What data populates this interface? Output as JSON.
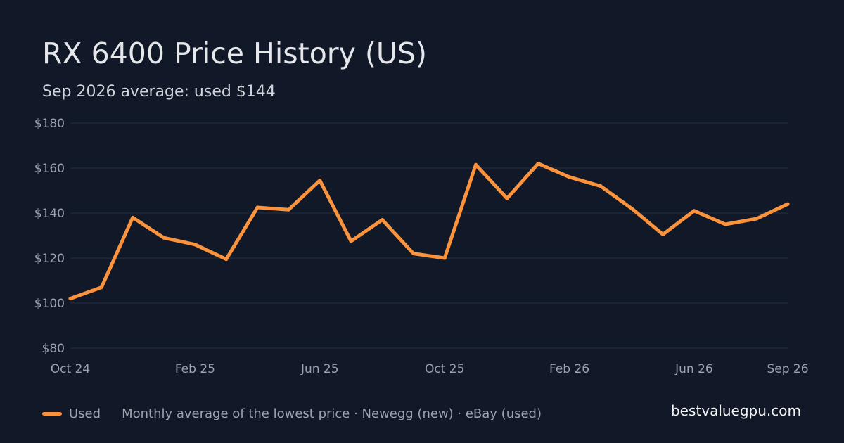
{
  "header": {
    "title": "RX 6400 Price History (US)",
    "subtitle": "Sep 2026 average: used $144"
  },
  "legend": {
    "series_label": "Used",
    "note": "Monthly average of the lowest price · Newegg (new) · eBay (used)"
  },
  "brand": "bestvaluegpu.com",
  "colors": {
    "background": "#111827",
    "grid": "#253041",
    "tick_text": "#9ca3af",
    "used_line": "#fb923c"
  },
  "chart_data": {
    "type": "line",
    "title": "RX 6400 Price History (US)",
    "subtitle": "Sep 2026 average: used $144",
    "xlabel": "",
    "ylabel": "",
    "ylim": [
      80,
      180
    ],
    "y_ticks": [
      180,
      160,
      140,
      120,
      100,
      80
    ],
    "y_tick_labels": [
      "$180",
      "$160",
      "$140",
      "$120",
      "$100",
      "$80"
    ],
    "x_tick_labels": [
      "Oct 24",
      "Feb 25",
      "Jun 25",
      "Oct 25",
      "Feb 26",
      "Jun 26",
      "Sep 26"
    ],
    "x_tick_index": [
      0,
      4,
      8,
      12,
      16,
      20,
      23
    ],
    "categories": [
      "Oct 24",
      "Nov 24",
      "Dec 24",
      "Jan 25",
      "Feb 25",
      "Mar 25",
      "Apr 25",
      "May 25",
      "Jun 25",
      "Jul 25",
      "Aug 25",
      "Sep 25",
      "Oct 25",
      "Nov 25",
      "Dec 25",
      "Jan 26",
      "Feb 26",
      "Mar 26",
      "Apr 26",
      "May 26",
      "Jun 26",
      "Jul 26",
      "Aug 26",
      "Sep 26"
    ],
    "series": [
      {
        "name": "Used",
        "values": [
          102,
          107,
          138,
          129,
          126,
          119.5,
          142.5,
          141.5,
          154.5,
          127.5,
          137,
          122,
          120,
          161.5,
          146.5,
          162,
          156,
          152,
          142,
          130.5,
          141,
          135,
          137.5,
          144
        ]
      }
    ],
    "grid": true,
    "legend_position": "bottom-left"
  }
}
